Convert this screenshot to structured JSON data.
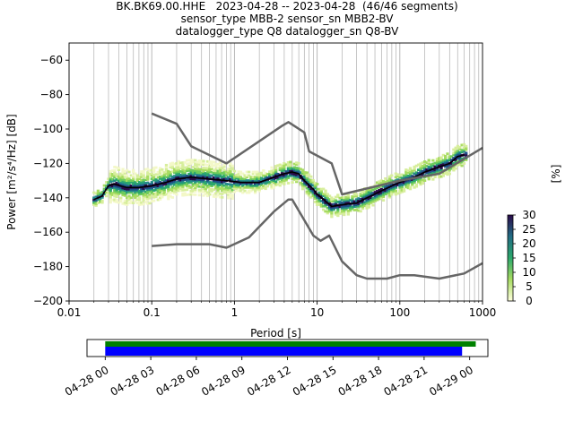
{
  "title_lines": [
    "BK.BK69.00.HHE   2023-04-28 -- 2023-04-28  (46/46 segments)",
    "sensor_type MBB-2 sensor_sn MBB2-BV",
    "datalogger_type Q8 datalogger_sn Q8-BV"
  ],
  "chart_data": [
    {
      "type": "heatmap",
      "xlabel": "Period [s]",
      "ylabel": "Power [m²/s⁴/Hz] [dB]",
      "xscale": "log",
      "xlim": [
        0.01,
        1000
      ],
      "ylim": [
        -200,
        -50
      ],
      "x_tick_labels": [
        "0.01",
        "0.1",
        "1",
        "10",
        "100",
        "1000"
      ],
      "y_ticks": [
        -200,
        -180,
        -160,
        -140,
        -120,
        -100,
        -80,
        -60
      ],
      "grid": "vertical minor lines",
      "colorbar": {
        "label": "[%]",
        "ticks": [
          0,
          5,
          10,
          15,
          20,
          25,
          30
        ],
        "range": [
          0,
          30
        ]
      },
      "series": [
        {
          "name": "",
          "color": "#000000",
          "points": [
            [
              0.02,
              -141
            ],
            [
              0.025,
              -139
            ],
            [
              0.03,
              -133
            ],
            [
              0.035,
              -132
            ],
            [
              0.05,
              -134
            ],
            [
              0.07,
              -134
            ],
            [
              0.1,
              -133
            ],
            [
              0.15,
              -131
            ],
            [
              0.2,
              -129
            ],
            [
              0.3,
              -128
            ],
            [
              0.5,
              -129
            ],
            [
              0.8,
              -130
            ],
            [
              1.2,
              -131
            ],
            [
              2,
              -131
            ],
            [
              3,
              -128
            ],
            [
              4,
              -126
            ],
            [
              5,
              -125
            ],
            [
              6,
              -126
            ],
            [
              7,
              -130
            ],
            [
              9,
              -135
            ],
            [
              10,
              -138
            ],
            [
              12,
              -141
            ],
            [
              15,
              -145
            ],
            [
              20,
              -144
            ],
            [
              30,
              -143
            ],
            [
              40,
              -140
            ],
            [
              60,
              -136
            ],
            [
              80,
              -133
            ],
            [
              100,
              -131
            ],
            [
              150,
              -128
            ],
            [
              200,
              -125
            ],
            [
              300,
              -122
            ],
            [
              400,
              -120
            ],
            [
              500,
              -116
            ],
            [
              600,
              -115
            ]
          ]
        },
        {
          "name": "",
          "color": "#666666",
          "points": [
            [
              0.1,
              -91
            ],
            [
              0.2,
              -97
            ],
            [
              0.3,
              -110
            ],
            [
              0.8,
              -120
            ],
            [
              3.8,
              -98
            ],
            [
              4.5,
              -96
            ],
            [
              7,
              -102
            ],
            [
              8,
              -113
            ],
            [
              15,
              -120
            ],
            [
              20,
              -138
            ],
            [
              100,
              -130
            ],
            [
              300,
              -126
            ],
            [
              1000,
              -111
            ]
          ]
        },
        {
          "name": "",
          "color": "#666666",
          "points": [
            [
              0.1,
              -168
            ],
            [
              0.2,
              -167
            ],
            [
              0.5,
              -167
            ],
            [
              0.8,
              -169
            ],
            [
              1.5,
              -163
            ],
            [
              3,
              -148
            ],
            [
              4.5,
              -141
            ],
            [
              5,
              -141
            ],
            [
              7,
              -153
            ],
            [
              9,
              -162
            ],
            [
              11,
              -165
            ],
            [
              14,
              -162
            ],
            [
              20,
              -177
            ],
            [
              30,
              -185
            ],
            [
              40,
              -187
            ],
            [
              70,
              -187
            ],
            [
              100,
              -185
            ],
            [
              150,
              -185
            ],
            [
              300,
              -187
            ],
            [
              600,
              -184
            ],
            [
              1000,
              -178
            ]
          ]
        }
      ]
    },
    {
      "type": "timeline",
      "x_tick_labels": [
        "04-28 00",
        "04-28 03",
        "04-28 06",
        "04-28 09",
        "04-28 12",
        "04-28 15",
        "04-28 18",
        "04-28 21",
        "04-29 00"
      ],
      "xlim_hours": [
        -1.2,
        25.2
      ],
      "bars": [
        {
          "start_h": 0,
          "end_h": 24.4,
          "color": "#008000"
        },
        {
          "start_h": 0,
          "end_h": 23.5,
          "color": "#0000ff"
        }
      ]
    }
  ]
}
